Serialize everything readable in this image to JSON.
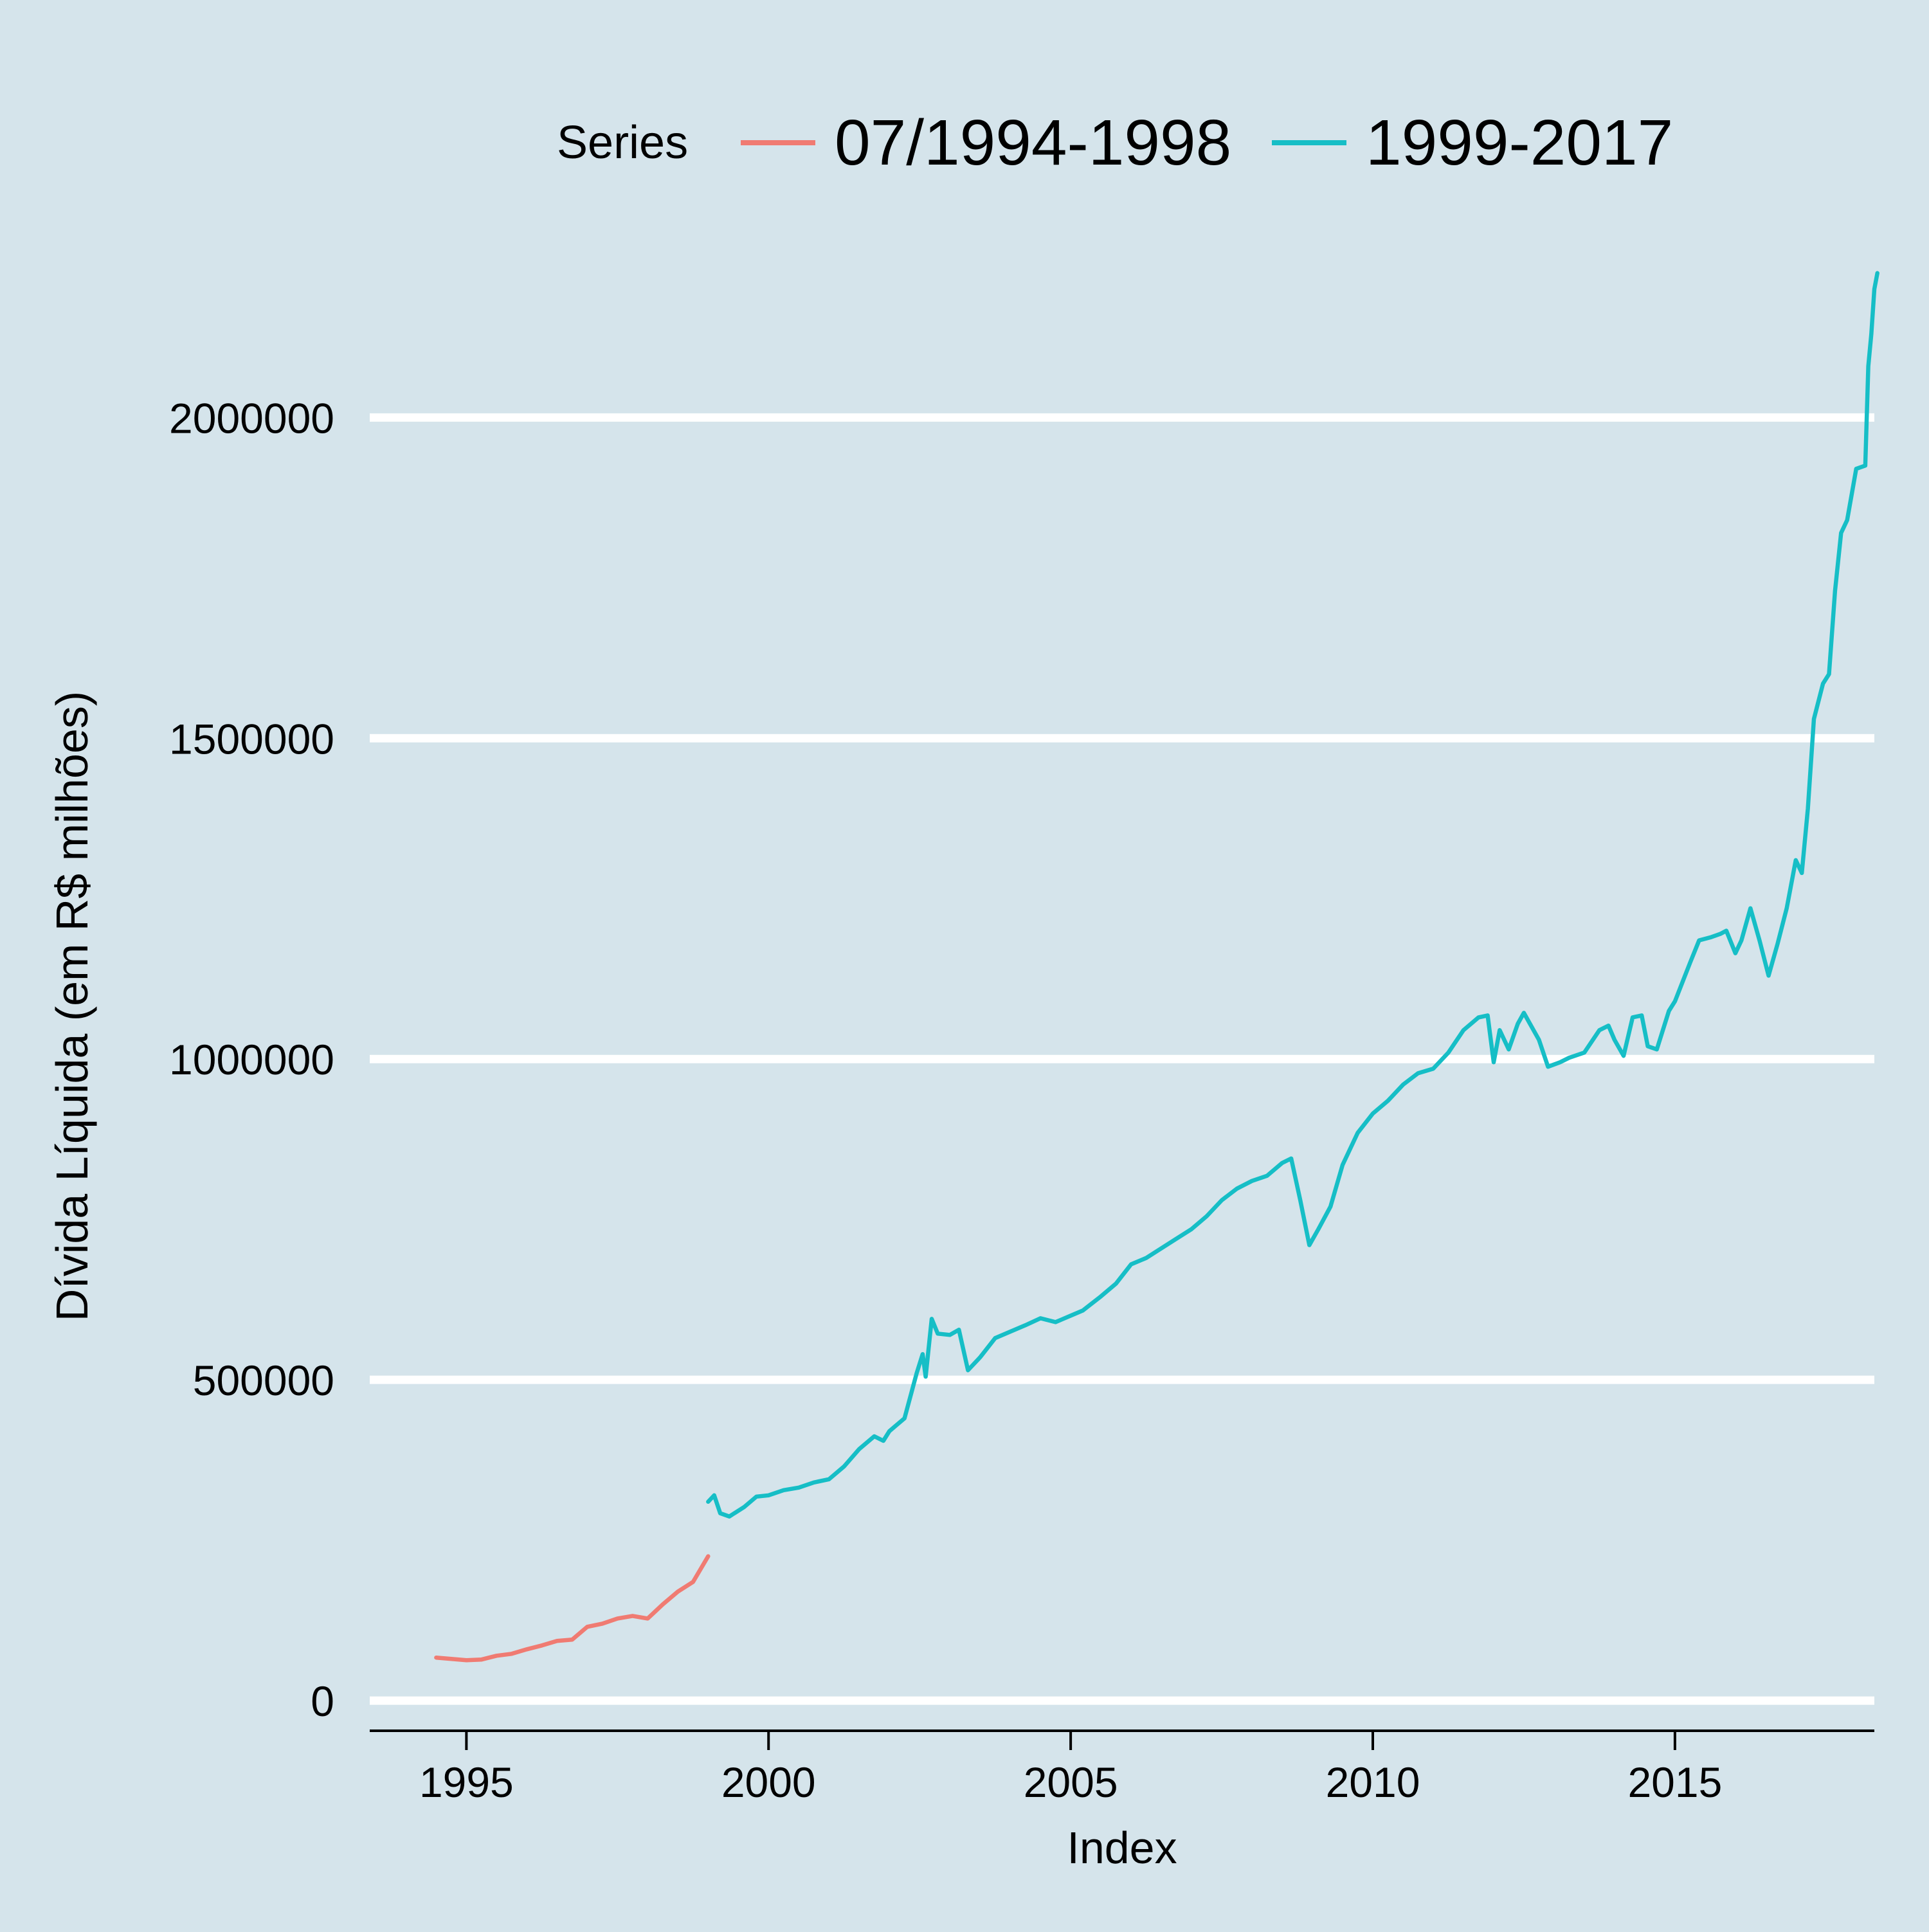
{
  "chart_data": {
    "type": "line",
    "title": "",
    "xlabel": "Index",
    "ylabel": "Dívida Líquida (em R$ milhões)",
    "xlim": [
      1993.4,
      2018.3
    ],
    "ylim": [
      -50000,
      2320000
    ],
    "x_ticks": [
      1995,
      2000,
      2005,
      2010,
      2015
    ],
    "x_tick_labels": [
      "1995",
      "2000",
      "2005",
      "2010",
      "2015"
    ],
    "y_ticks": [
      0,
      500000,
      1000000,
      1500000,
      2000000
    ],
    "y_tick_labels": [
      "0",
      "500000",
      "1000000",
      "1500000",
      "2000000"
    ],
    "grid": "horizontal",
    "background": "#d5e4eb",
    "legend": {
      "position": "top",
      "title": "Series"
    },
    "series": [
      {
        "name": "07/1994-1998",
        "color": "#f07b72",
        "points": [
          [
            1994.5,
            67000
          ],
          [
            1994.75,
            65000
          ],
          [
            1995.0,
            63000
          ],
          [
            1995.25,
            64000
          ],
          [
            1995.5,
            70000
          ],
          [
            1995.75,
            73000
          ],
          [
            1996.0,
            80000
          ],
          [
            1996.25,
            86000
          ],
          [
            1996.5,
            93000
          ],
          [
            1996.75,
            95000
          ],
          [
            1997.0,
            115000
          ],
          [
            1997.25,
            120000
          ],
          [
            1997.5,
            128000
          ],
          [
            1997.75,
            132000
          ],
          [
            1998.0,
            128000
          ],
          [
            1998.25,
            150000
          ],
          [
            1998.5,
            170000
          ],
          [
            1998.75,
            185000
          ],
          [
            1999.0,
            225000
          ]
        ]
      },
      {
        "name": "1999-2017",
        "color": "#16bec6",
        "points": [
          [
            1999.0,
            310000
          ],
          [
            1999.1,
            320000
          ],
          [
            1999.2,
            292000
          ],
          [
            1999.35,
            287000
          ],
          [
            1999.6,
            302000
          ],
          [
            1999.8,
            318000
          ],
          [
            2000.0,
            320000
          ],
          [
            2000.25,
            328000
          ],
          [
            2000.5,
            332000
          ],
          [
            2000.75,
            340000
          ],
          [
            2001.0,
            345000
          ],
          [
            2001.25,
            365000
          ],
          [
            2001.5,
            392000
          ],
          [
            2001.75,
            412000
          ],
          [
            2001.9,
            405000
          ],
          [
            2002.0,
            420000
          ],
          [
            2002.25,
            440000
          ],
          [
            2002.45,
            510000
          ],
          [
            2002.55,
            540000
          ],
          [
            2002.6,
            505000
          ],
          [
            2002.7,
            595000
          ],
          [
            2002.8,
            572000
          ],
          [
            2003.0,
            570000
          ],
          [
            2003.15,
            578000
          ],
          [
            2003.3,
            515000
          ],
          [
            2003.5,
            535000
          ],
          [
            2003.75,
            565000
          ],
          [
            2004.0,
            575000
          ],
          [
            2004.25,
            585000
          ],
          [
            2004.5,
            596000
          ],
          [
            2004.75,
            590000
          ],
          [
            2005.0,
            600000
          ],
          [
            2005.2,
            608000
          ],
          [
            2005.5,
            630000
          ],
          [
            2005.75,
            650000
          ],
          [
            2006.0,
            680000
          ],
          [
            2006.25,
            690000
          ],
          [
            2006.5,
            705000
          ],
          [
            2006.75,
            720000
          ],
          [
            2007.0,
            735000
          ],
          [
            2007.25,
            755000
          ],
          [
            2007.5,
            780000
          ],
          [
            2007.75,
            798000
          ],
          [
            2008.0,
            810000
          ],
          [
            2008.25,
            818000
          ],
          [
            2008.5,
            838000
          ],
          [
            2008.65,
            845000
          ],
          [
            2008.8,
            780000
          ],
          [
            2008.95,
            710000
          ],
          [
            2009.1,
            735000
          ],
          [
            2009.3,
            770000
          ],
          [
            2009.5,
            835000
          ],
          [
            2009.75,
            885000
          ],
          [
            2010.0,
            915000
          ],
          [
            2010.25,
            935000
          ],
          [
            2010.5,
            960000
          ],
          [
            2010.75,
            978000
          ],
          [
            2011.0,
            985000
          ],
          [
            2011.25,
            1010000
          ],
          [
            2011.5,
            1045000
          ],
          [
            2011.75,
            1065000
          ],
          [
            2011.9,
            1068000
          ],
          [
            2012.0,
            995000
          ],
          [
            2012.1,
            1045000
          ],
          [
            2012.25,
            1015000
          ],
          [
            2012.4,
            1055000
          ],
          [
            2012.5,
            1072000
          ],
          [
            2012.75,
            1030000
          ],
          [
            2012.9,
            988000
          ],
          [
            2013.1,
            995000
          ],
          [
            2013.25,
            1002000
          ],
          [
            2013.5,
            1010000
          ],
          [
            2013.75,
            1045000
          ],
          [
            2013.9,
            1052000
          ],
          [
            2014.0,
            1030000
          ],
          [
            2014.15,
            1005000
          ],
          [
            2014.3,
            1065000
          ],
          [
            2014.45,
            1068000
          ],
          [
            2014.55,
            1020000
          ],
          [
            2014.7,
            1015000
          ],
          [
            2014.9,
            1075000
          ],
          [
            2015.0,
            1090000
          ],
          [
            2015.25,
            1150000
          ],
          [
            2015.4,
            1185000
          ],
          [
            2015.6,
            1190000
          ],
          [
            2015.75,
            1195000
          ],
          [
            2015.85,
            1200000
          ],
          [
            2016.0,
            1165000
          ],
          [
            2016.1,
            1185000
          ],
          [
            2016.25,
            1235000
          ],
          [
            2016.4,
            1185000
          ],
          [
            2016.55,
            1130000
          ],
          [
            2016.7,
            1180000
          ],
          [
            2016.85,
            1235000
          ],
          [
            2017.0,
            1310000
          ],
          [
            2017.1,
            1290000
          ],
          [
            2017.2,
            1390000
          ],
          [
            2017.3,
            1530000
          ],
          [
            2017.45,
            1585000
          ],
          [
            2017.55,
            1600000
          ],
          [
            2017.65,
            1730000
          ],
          [
            2017.75,
            1820000
          ],
          [
            2017.85,
            1840000
          ],
          [
            2018.0,
            1920000
          ],
          [
            2018.15,
            1925000
          ],
          [
            2018.2,
            2080000
          ],
          [
            2018.25,
            2130000
          ],
          [
            2018.3,
            2200000
          ],
          [
            2018.35,
            2225000
          ]
        ]
      }
    ]
  }
}
